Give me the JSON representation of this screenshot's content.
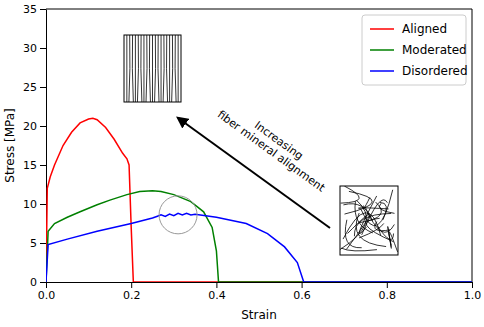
{
  "chart_data": {
    "type": "line",
    "x_label": "Strain",
    "y_label": "Stress [MPa]",
    "xlim": [
      0,
      1
    ],
    "ylim": [
      0,
      35
    ],
    "xticks": [
      {
        "value": 0,
        "label": "0.0"
      },
      {
        "value": 0.2,
        "label": "0.2"
      },
      {
        "value": 0.4,
        "label": "0.4"
      },
      {
        "value": 0.6,
        "label": "0.6"
      },
      {
        "value": 0.8,
        "label": "0.8"
      },
      {
        "value": 1,
        "label": "1.0"
      }
    ],
    "yticks": [
      0,
      5,
      10,
      15,
      20,
      25,
      30,
      35
    ],
    "grid": false,
    "legend": "upper right",
    "annotations": [
      "Increasing",
      "fiber mineral alignment"
    ],
    "series": [
      {
        "name": "Aligned",
        "color": "#ff0000",
        "x": [
          0,
          0.003,
          0.01,
          0.02,
          0.04,
          0.06,
          0.08,
          0.1,
          0.11,
          0.12,
          0.14,
          0.16,
          0.18,
          0.19,
          0.195,
          0.2,
          0.205,
          1
        ],
        "values": [
          0,
          12,
          13.5,
          15,
          17.5,
          19.2,
          20.4,
          20.9,
          21,
          20.8,
          19.8,
          18.3,
          16.5,
          15.8,
          15,
          7,
          0,
          0
        ]
      },
      {
        "name": "Moderated",
        "color": "#008000",
        "x": [
          0,
          0.005,
          0.02,
          0.05,
          0.08,
          0.12,
          0.15,
          0.19,
          0.22,
          0.25,
          0.27,
          0.3,
          0.34,
          0.37,
          0.39,
          0.4,
          0.405,
          1
        ],
        "values": [
          0,
          6.5,
          7.5,
          8.3,
          9,
          9.9,
          10.5,
          11.2,
          11.6,
          11.7,
          11.6,
          11.2,
          10.3,
          9,
          7,
          4,
          0,
          0
        ]
      },
      {
        "name": "Disordered",
        "color": "#0000ff",
        "x": [
          0,
          0.005,
          0.05,
          0.12,
          0.2,
          0.25,
          0.26,
          0.27,
          0.28,
          0.29,
          0.3,
          0.31,
          0.32,
          0.33,
          0.34,
          0.35,
          0.4,
          0.47,
          0.52,
          0.56,
          0.59,
          0.605,
          1
        ],
        "values": [
          0,
          4.8,
          5.5,
          6.5,
          7.5,
          8.2,
          8.4,
          8.6,
          8.4,
          8.7,
          8.5,
          8.8,
          8.6,
          8.8,
          8.6,
          8.7,
          8.3,
          7.5,
          6.2,
          4.5,
          2.5,
          0,
          0
        ]
      }
    ]
  }
}
